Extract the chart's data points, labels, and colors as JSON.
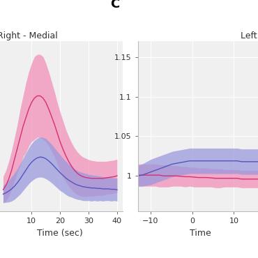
{
  "panel_left": {
    "title": "Right - Medial",
    "xlabel": "Time (sec)",
    "xlim": [
      -2,
      42
    ],
    "ylim": [
      0.96,
      1.35
    ],
    "xticks": [
      10,
      20,
      30,
      40
    ],
    "pink_mean": [
      1.01,
      1.02,
      1.035,
      1.055,
      1.08,
      1.105,
      1.13,
      1.155,
      1.175,
      1.195,
      1.21,
      1.22,
      1.225,
      1.225,
      1.22,
      1.21,
      1.195,
      1.178,
      1.16,
      1.14,
      1.12,
      1.103,
      1.088,
      1.075,
      1.064,
      1.055,
      1.048,
      1.043,
      1.04,
      1.038,
      1.037,
      1.036,
      1.036,
      1.036,
      1.036,
      1.036,
      1.037,
      1.038,
      1.039,
      1.04,
      1.042
    ],
    "pink_upper": [
      1.04,
      1.055,
      1.075,
      1.1,
      1.13,
      1.16,
      1.195,
      1.225,
      1.255,
      1.28,
      1.3,
      1.315,
      1.32,
      1.32,
      1.315,
      1.3,
      1.28,
      1.258,
      1.235,
      1.21,
      1.188,
      1.168,
      1.148,
      1.132,
      1.118,
      1.106,
      1.097,
      1.09,
      1.085,
      1.082,
      1.079,
      1.077,
      1.076,
      1.075,
      1.075,
      1.075,
      1.075,
      1.076,
      1.077,
      1.078,
      1.08
    ],
    "pink_lower": [
      0.98,
      0.985,
      0.995,
      1.01,
      1.03,
      1.05,
      1.065,
      1.085,
      1.095,
      1.11,
      1.12,
      1.125,
      1.13,
      1.13,
      1.125,
      1.12,
      1.11,
      1.098,
      1.085,
      1.07,
      1.052,
      1.038,
      1.028,
      1.018,
      1.01,
      1.004,
      0.999,
      0.996,
      0.995,
      0.994,
      0.995,
      0.995,
      0.996,
      0.997,
      0.997,
      0.997,
      0.999,
      1.0,
      1.001,
      1.002,
      1.004
    ],
    "blue_mean": [
      1.0,
      1.003,
      1.007,
      1.012,
      1.018,
      1.026,
      1.035,
      1.045,
      1.055,
      1.065,
      1.073,
      1.079,
      1.083,
      1.085,
      1.084,
      1.081,
      1.076,
      1.07,
      1.063,
      1.056,
      1.049,
      1.043,
      1.037,
      1.032,
      1.028,
      1.024,
      1.021,
      1.019,
      1.017,
      1.016,
      1.015,
      1.014,
      1.014,
      1.013,
      1.013,
      1.012,
      1.012,
      1.012,
      1.011,
      1.011,
      1.01
    ],
    "blue_upper": [
      1.02,
      1.025,
      1.032,
      1.04,
      1.048,
      1.058,
      1.07,
      1.082,
      1.094,
      1.106,
      1.116,
      1.123,
      1.128,
      1.131,
      1.13,
      1.127,
      1.121,
      1.114,
      1.106,
      1.098,
      1.09,
      1.082,
      1.075,
      1.069,
      1.063,
      1.058,
      1.054,
      1.051,
      1.049,
      1.047,
      1.045,
      1.044,
      1.043,
      1.042,
      1.041,
      1.04,
      1.039,
      1.039,
      1.038,
      1.037,
      1.036
    ],
    "blue_lower": [
      0.98,
      0.981,
      0.982,
      0.984,
      0.988,
      0.994,
      1.0,
      1.008,
      1.016,
      1.024,
      1.03,
      1.035,
      1.038,
      1.039,
      1.038,
      1.035,
      1.031,
      1.026,
      1.02,
      1.014,
      1.008,
      1.004,
      0.999,
      0.995,
      0.993,
      0.99,
      0.988,
      0.987,
      0.985,
      0.985,
      0.985,
      0.984,
      0.985,
      0.984,
      0.985,
      0.984,
      0.985,
      0.985,
      0.984,
      0.985,
      0.984
    ],
    "pink_color": "#d63070",
    "pink_fill": "#f090b8",
    "blue_color": "#5555bb",
    "blue_fill": "#9999dd",
    "bg_color": "#f0f0f0"
  },
  "panel_right": {
    "title": "Left -",
    "panel_label": "C",
    "xlabel": "Time",
    "xlim": [
      -13,
      17
    ],
    "ylim": [
      0.955,
      1.17
    ],
    "yticks": [
      1.0,
      1.05,
      1.1,
      1.15
    ],
    "ytick_labels": [
      "1",
      "1.05",
      "1.1",
      "1.15"
    ],
    "xticks": [
      -10,
      0,
      10
    ],
    "pink_mean": [
      1.001,
      1.001,
      1.001,
      1.001,
      1.001,
      1.001,
      1.0,
      1.0,
      1.0,
      1.0,
      0.9995,
      0.999,
      0.999,
      0.9985,
      0.998,
      0.998,
      0.998,
      0.9975,
      0.997,
      0.997,
      0.997,
      0.997,
      0.997,
      0.997,
      0.996,
      0.996,
      0.996,
      0.996,
      0.996,
      0.996
    ],
    "pink_upper": [
      1.015,
      1.015,
      1.015,
      1.015,
      1.015,
      1.014,
      1.014,
      1.014,
      1.013,
      1.013,
      1.012,
      1.012,
      1.011,
      1.011,
      1.01,
      1.01,
      1.01,
      1.009,
      1.009,
      1.009,
      1.008,
      1.008,
      1.008,
      1.008,
      1.007,
      1.007,
      1.007,
      1.007,
      1.007,
      1.007
    ],
    "pink_lower": [
      0.987,
      0.987,
      0.987,
      0.987,
      0.987,
      0.986,
      0.986,
      0.986,
      0.987,
      0.987,
      0.987,
      0.986,
      0.987,
      0.986,
      0.986,
      0.986,
      0.986,
      0.986,
      0.985,
      0.985,
      0.986,
      0.986,
      0.986,
      0.986,
      0.985,
      0.985,
      0.985,
      0.985,
      0.985,
      0.985
    ],
    "blue_mean": [
      1.0,
      1.001,
      1.003,
      1.005,
      1.007,
      1.009,
      1.011,
      1.013,
      1.015,
      1.016,
      1.017,
      1.018,
      1.019,
      1.019,
      1.019,
      1.019,
      1.019,
      1.019,
      1.019,
      1.019,
      1.019,
      1.019,
      1.019,
      1.019,
      1.018,
      1.018,
      1.018,
      1.018,
      1.018,
      1.018
    ],
    "blue_upper": [
      1.013,
      1.015,
      1.018,
      1.021,
      1.023,
      1.025,
      1.027,
      1.029,
      1.031,
      1.032,
      1.033,
      1.034,
      1.035,
      1.035,
      1.035,
      1.035,
      1.035,
      1.035,
      1.035,
      1.035,
      1.035,
      1.035,
      1.035,
      1.035,
      1.034,
      1.034,
      1.034,
      1.034,
      1.034,
      1.034
    ],
    "blue_lower": [
      0.987,
      0.987,
      0.988,
      0.989,
      0.991,
      0.993,
      0.995,
      0.997,
      0.999,
      1.0,
      1.001,
      1.002,
      1.003,
      1.003,
      1.003,
      1.003,
      1.003,
      1.003,
      1.003,
      1.003,
      1.003,
      1.003,
      1.003,
      1.003,
      1.002,
      1.002,
      1.002,
      1.002,
      1.002,
      1.002
    ],
    "pink_color": "#d63070",
    "pink_fill": "#f090b8",
    "blue_color": "#5555bb",
    "blue_fill": "#9999dd",
    "bg_color": "#f0f0f0"
  },
  "figure_bg": "#ffffff"
}
